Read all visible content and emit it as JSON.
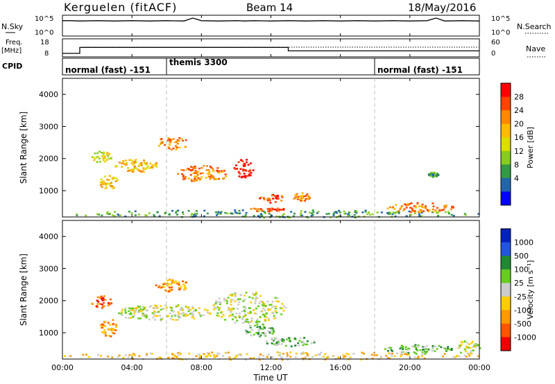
{
  "header": {
    "station": "Kerguelen (fitACF)",
    "beam": "Beam 14",
    "date": "18/May/2016"
  },
  "panel_nsky": {
    "left_label": "N.Sky",
    "left_ticks": [
      "10^5",
      "10^0"
    ],
    "right_label": "N.Search",
    "right_ticks": [
      "10^5",
      "10^0"
    ]
  },
  "panel_freq": {
    "left_label": "Freq.",
    "left_unit": "[MHz]",
    "left_ticks": [
      "18",
      "8"
    ],
    "right_label": "Nave",
    "right_ticks": [
      "60",
      "0"
    ]
  },
  "cpid": {
    "label": "CPID",
    "segments": [
      {
        "name": "normal (fast) -151",
        "start_hour": 0,
        "end_hour": 6
      },
      {
        "name": "themis 3300",
        "start_hour": 6,
        "end_hour": 18
      },
      {
        "name": "normal (fast) -151",
        "start_hour": 18,
        "end_hour": 24
      }
    ]
  },
  "time_axis": {
    "label": "Time UT",
    "ticks": [
      "00:00",
      "04:00",
      "08:00",
      "12:00",
      "16:00",
      "20:00",
      "00:00"
    ]
  },
  "power_scale": {
    "label": "Power [dB]",
    "ticks": [
      "28",
      "24",
      "20",
      "16",
      "12",
      "8",
      "4"
    ],
    "colors": [
      "#ff0000",
      "#ff4400",
      "#ff8800",
      "#ffbb00",
      "#dddd00",
      "#88cc22",
      "#339944",
      "#2266aa",
      "#0000ff"
    ]
  },
  "velocity_scale": {
    "label": "Velocity [m s⁻¹]",
    "ticks": [
      "1000",
      "500",
      "100",
      "25",
      "-25",
      "-100",
      "-500",
      "-1000"
    ],
    "colors": [
      "#0022bb",
      "#2255dd",
      "#228833",
      "#66cc22",
      "#cccccc",
      "#ffcc00",
      "#ff9900",
      "#ff5500",
      "#ee0000"
    ]
  },
  "chart_data": [
    {
      "type": "line",
      "name": "nsky",
      "x_range": [
        0,
        24
      ],
      "ylim_log": [
        0,
        5
      ],
      "x": [
        0,
        0.5,
        1,
        2,
        3,
        4,
        5,
        6,
        7,
        7.5,
        8,
        9,
        10,
        10.5,
        11,
        12,
        13,
        14,
        15,
        16,
        17,
        18,
        19,
        20,
        21,
        21.5,
        22,
        23,
        24
      ],
      "log_values": [
        4.2,
        4.2,
        4.1,
        4.2,
        4.1,
        4.2,
        4.1,
        4.2,
        4.1,
        5.0,
        4.2,
        4.1,
        4.2,
        4.1,
        4.2,
        4.1,
        4.2,
        4.1,
        4.2,
        4.1,
        4.2,
        4.1,
        4.2,
        4.1,
        4.2,
        5.0,
        4.1,
        4.2,
        4.1
      ]
    },
    {
      "type": "line",
      "name": "frequency",
      "x_range": [
        0,
        24
      ],
      "ylim": [
        8,
        18
      ],
      "x": [
        0,
        1,
        1,
        13,
        13,
        24
      ],
      "values": [
        9.5,
        9.5,
        13.8,
        13.8,
        11.3,
        11.3
      ]
    },
    {
      "type": "heatmap",
      "name": "power",
      "x_range": [
        0,
        24
      ],
      "xlabel": "Time UT",
      "ylabel": "Slant Range [km]",
      "ylim": [
        180,
        4500
      ],
      "yticks": [
        1000,
        2000,
        3000,
        4000
      ],
      "features": [
        {
          "t0": 0.0,
          "t1": 24.0,
          "r0": 180,
          "r1": 420,
          "level": 2
        },
        {
          "t0": 2.1,
          "t1": 3.2,
          "r0": 1050,
          "r1": 1500,
          "level": 5
        },
        {
          "t0": 1.6,
          "t1": 2.8,
          "r0": 1900,
          "r1": 2250,
          "level": 4
        },
        {
          "t0": 3.0,
          "t1": 5.5,
          "r0": 1600,
          "r1": 2000,
          "level": 5
        },
        {
          "t0": 5.3,
          "t1": 7.2,
          "r0": 2300,
          "r1": 2700,
          "level": 6
        },
        {
          "t0": 6.5,
          "t1": 9.5,
          "r0": 1300,
          "r1": 1800,
          "level": 6
        },
        {
          "t0": 9.8,
          "t1": 11.0,
          "r0": 1400,
          "r1": 2000,
          "level": 8
        },
        {
          "t0": 11.2,
          "t1": 12.8,
          "r0": 650,
          "r1": 900,
          "level": 7
        },
        {
          "t0": 10.5,
          "t1": 13.0,
          "r0": 380,
          "r1": 480,
          "level": 7
        },
        {
          "t0": 13.2,
          "t1": 14.2,
          "r0": 700,
          "r1": 950,
          "level": 6
        },
        {
          "t0": 18.5,
          "t1": 22.5,
          "r0": 350,
          "r1": 650,
          "level": 6
        },
        {
          "t0": 21.0,
          "t1": 21.6,
          "r0": 1450,
          "r1": 1600,
          "level": 2
        }
      ]
    },
    {
      "type": "heatmap",
      "name": "velocity",
      "x_range": [
        0,
        24
      ],
      "xlabel": "Time UT",
      "ylabel": "Slant Range [km]",
      "ylim": [
        180,
        4500
      ],
      "yticks": [
        1000,
        2000,
        3000,
        4000
      ],
      "features": [
        {
          "t0": 0.0,
          "t1": 24.0,
          "r0": 180,
          "r1": 420,
          "class": 5
        },
        {
          "t0": 2.1,
          "t1": 3.2,
          "r0": 900,
          "r1": 1450,
          "class": 6
        },
        {
          "t0": 1.6,
          "t1": 2.8,
          "r0": 1800,
          "r1": 2200,
          "class": 7
        },
        {
          "t0": 3.0,
          "t1": 8.5,
          "r0": 1400,
          "r1": 1900,
          "class": 4
        },
        {
          "t0": 5.3,
          "t1": 7.2,
          "r0": 2300,
          "r1": 2700,
          "class": 6
        },
        {
          "t0": 8.5,
          "t1": 12.8,
          "r0": 1300,
          "r1": 2300,
          "class": 4
        },
        {
          "t0": 10.4,
          "t1": 12.2,
          "r0": 900,
          "r1": 1300,
          "class": 3
        },
        {
          "t0": 11.5,
          "t1": 14.5,
          "r0": 600,
          "r1": 900,
          "class": 3
        },
        {
          "t0": 18.5,
          "t1": 22.5,
          "r0": 350,
          "r1": 650,
          "class": 3
        },
        {
          "t0": 22.5,
          "t1": 24.0,
          "r0": 350,
          "r1": 800,
          "class": 4
        }
      ]
    }
  ]
}
